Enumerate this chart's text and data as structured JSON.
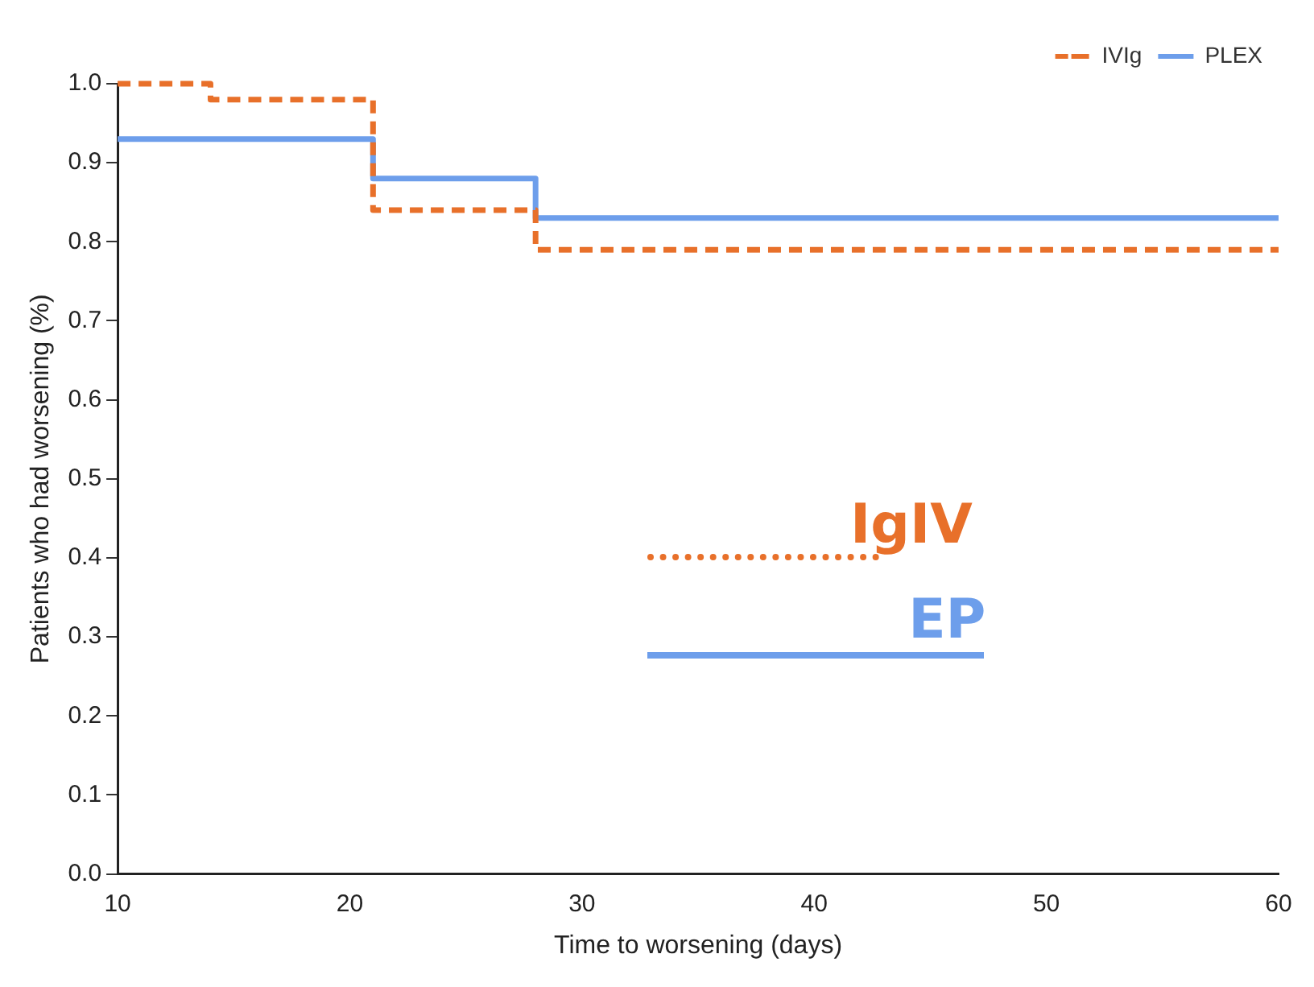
{
  "chart_data": {
    "type": "step",
    "xlabel": "Time to worsening (days)",
    "ylabel": "Patients who had worsening (%)",
    "xlim": [
      10,
      60
    ],
    "xticks": [
      10,
      20,
      30,
      40,
      50,
      60
    ],
    "ylim": [
      0,
      1
    ],
    "yticks": [
      {
        "value": 0,
        "label": "0.0"
      },
      0.1,
      0.2,
      0.3,
      0.4,
      0.5,
      0.6,
      0.7,
      0.8,
      0.9,
      {
        "value": 1,
        "label": "1.0"
      }
    ],
    "grid": false,
    "legend": "top right",
    "marker": "none",
    "series": [
      {
        "name": "IVIg",
        "color": "#e8702a",
        "line_style": "dashed",
        "x": [
          10,
          14,
          21,
          28,
          60
        ],
        "values": [
          1.0,
          0.98,
          0.84,
          0.79,
          0.79
        ]
      },
      {
        "name": "PLEX",
        "color": "#6d9eeb",
        "line_style": "solid",
        "x": [
          10,
          21,
          28,
          60
        ],
        "values": [
          0.93,
          0.88,
          0.83,
          0.83
        ]
      }
    ],
    "annotations": [
      "IgIV",
      "EP"
    ]
  }
}
